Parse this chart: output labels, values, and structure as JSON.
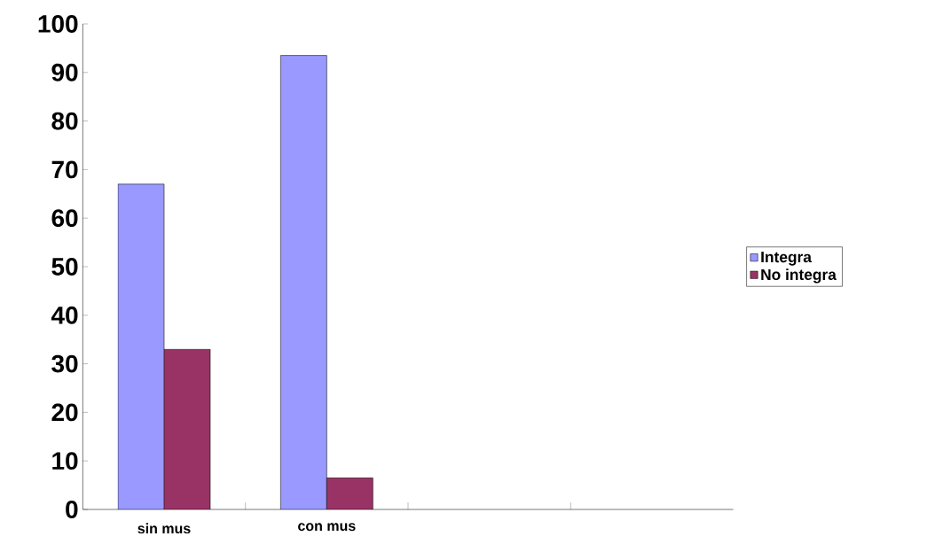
{
  "chart_data": {
    "type": "bar",
    "categories": [
      "sin mus",
      "con mus",
      null,
      null
    ],
    "series": [
      {
        "name": "Integra",
        "color": "#9999ff",
        "values": [
          67,
          93.5,
          null,
          null
        ]
      },
      {
        "name": "No integra",
        "color": "#993366",
        "values": [
          33,
          6.5,
          null,
          null
        ]
      }
    ],
    "ylim": [
      0,
      100
    ],
    "yticks": [
      0,
      10,
      20,
      30,
      40,
      50,
      60,
      70,
      80,
      90,
      100
    ],
    "grid": false,
    "legend": "right"
  }
}
